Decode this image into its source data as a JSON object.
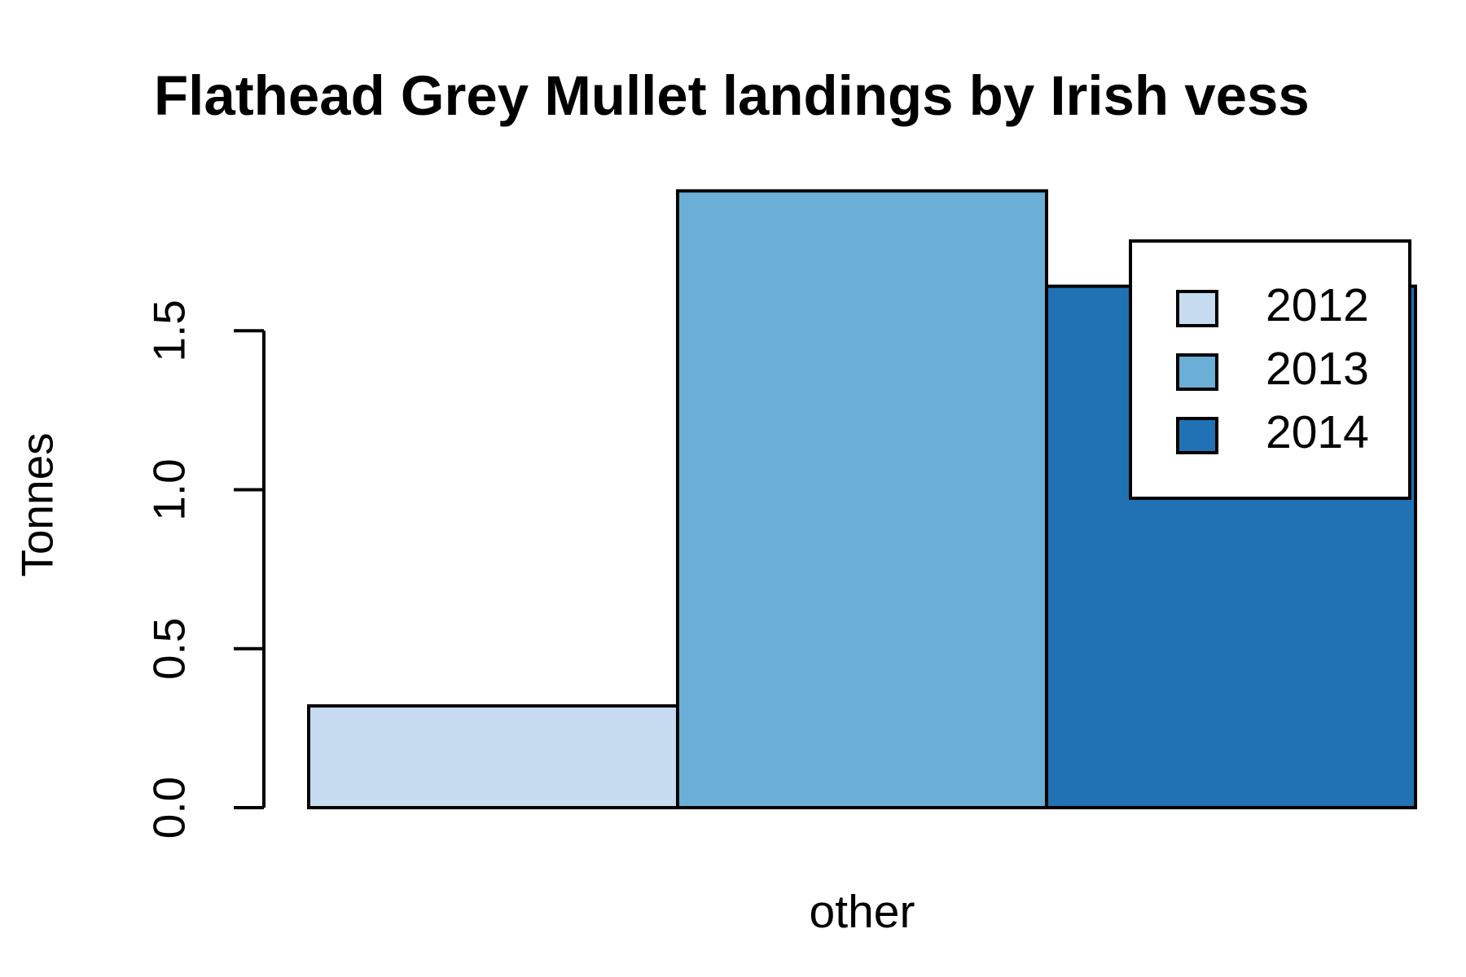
{
  "chart_data": {
    "type": "bar",
    "title": "Flathead Grey Mullet landings by Irish vess",
    "y_label": "Tonnes",
    "categories": [
      "other"
    ],
    "series": [
      {
        "name": "2012",
        "color": "#c6dbef",
        "values": [
          0.32
        ]
      },
      {
        "name": "2013",
        "color": "#6baed6",
        "values": [
          1.94
        ]
      },
      {
        "name": "2014",
        "color": "#2171b5",
        "values": [
          1.64
        ]
      }
    ],
    "ylim": [
      0,
      2
    ],
    "yticks": [
      {
        "value": 0,
        "label": "0.0"
      },
      0.5,
      {
        "value": 1,
        "label": "1.0"
      },
      1.5
    ],
    "legend": "top-right"
  }
}
